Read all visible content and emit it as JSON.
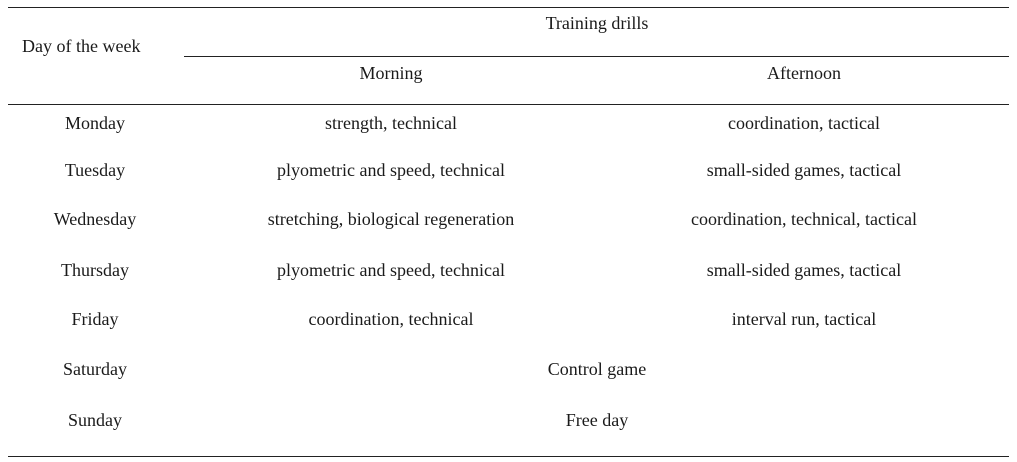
{
  "table": {
    "header": {
      "day_col": "Day of the week",
      "group": "Training drills",
      "morning": "Morning",
      "afternoon": "Afternoon"
    },
    "rows": [
      {
        "day": "Monday",
        "morning": "strength, technical",
        "afternoon": "coordination, tactical"
      },
      {
        "day": "Tuesday",
        "morning": "plyometric and speed, technical",
        "afternoon": "small-sided games, tactical"
      },
      {
        "day": "Wednesday",
        "morning": "stretching, biological regeneration",
        "afternoon": "coordination, technical, tactical"
      },
      {
        "day": "Thursday",
        "morning": "plyometric and speed, technical",
        "afternoon": "small-sided games, tactical"
      },
      {
        "day": "Friday",
        "morning": "coordination, technical",
        "afternoon": "interval run, tactical"
      },
      {
        "day": "Saturday",
        "merged": "Control game"
      },
      {
        "day": "Sunday",
        "merged": "Free day"
      }
    ]
  }
}
